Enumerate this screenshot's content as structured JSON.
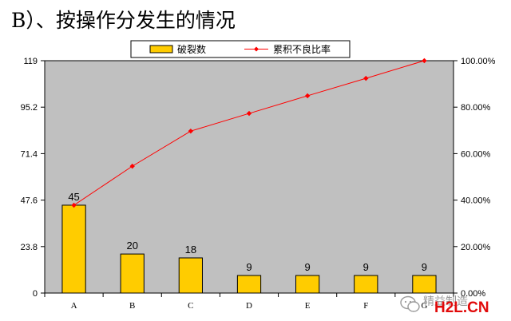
{
  "page": {
    "heading": "B）、按操作分发生的情况"
  },
  "chart_data": {
    "type": "bar",
    "categories": [
      "A",
      "B",
      "C",
      "D",
      "E",
      "F",
      "G"
    ],
    "series": [
      {
        "name": "破裂数",
        "kind": "bar",
        "axis": "left",
        "color": "#FFCC00",
        "values": [
          45,
          20,
          18,
          9,
          9,
          9,
          9
        ],
        "data_labels": [
          "45",
          "20",
          "18",
          "9",
          "9",
          "9",
          "9"
        ]
      },
      {
        "name": "累积不良比率",
        "kind": "line",
        "axis": "right",
        "color": "#FF0000",
        "values": [
          37.8,
          54.6,
          69.7,
          77.3,
          84.9,
          92.4,
          100.0
        ]
      }
    ],
    "y_left": {
      "lim": [
        0,
        119
      ],
      "ticks": [
        "0",
        "23.8",
        "47.6",
        "71.4",
        "95.2",
        "119"
      ]
    },
    "y_right": {
      "lim": [
        0,
        100
      ],
      "ticks": [
        "0.00%",
        "20.00%",
        "40.00%",
        "60.00%",
        "80.00%",
        "100.00%"
      ]
    },
    "plot_background": "#C0C0C0",
    "grid": false,
    "legend": {
      "position": "top-center",
      "entries": [
        "破裂数",
        "累积不良比率"
      ]
    }
  },
  "watermark": {
    "text": "精益制造",
    "brand": "H2L.CN"
  }
}
